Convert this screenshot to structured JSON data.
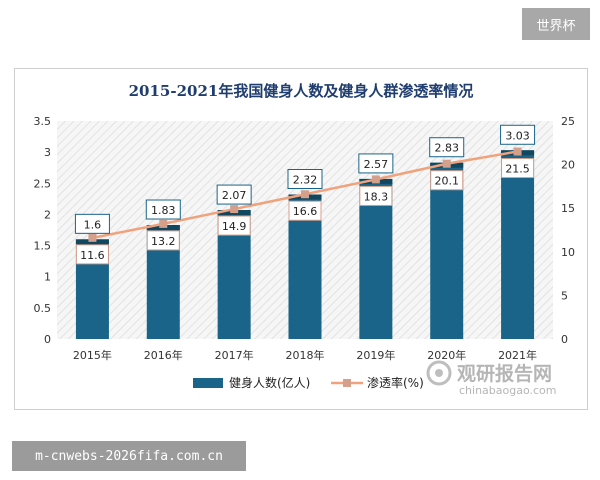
{
  "overlays": {
    "top_badge": "世界杯",
    "bottom_badge": "m-cnwebs-2026fifa.com.cn",
    "watermark_cn": "观研报告网",
    "watermark_en": "chinabaogao.com"
  },
  "colors": {
    "bar": "#1a6489",
    "bar_top": "#11485f",
    "line": "#f0a27c",
    "marker": "#d4a08c",
    "label_border": "#1a6489"
  },
  "chart_data": {
    "type": "bar",
    "title": "2015-2021年我国健身人数及健身人群渗透率情况",
    "categories": [
      "2015年",
      "2016年",
      "2017年",
      "2018年",
      "2019年",
      "2020年",
      "2021年"
    ],
    "y_left": {
      "ylim": [
        0,
        3.5
      ],
      "ticks": [
        "0",
        "0.5",
        "1",
        "1.5",
        "2",
        "2.5",
        "3",
        "3.5"
      ]
    },
    "y_right": {
      "ylim": [
        0,
        25
      ],
      "ticks": [
        "0",
        "5",
        "10",
        "15",
        "20",
        "25"
      ]
    },
    "series": [
      {
        "name": "健身人数(亿人)",
        "axis": "left",
        "kind": "bar",
        "values": [
          1.6,
          1.83,
          2.07,
          2.32,
          2.57,
          2.83,
          3.03
        ],
        "labels": [
          "1.6",
          "1.83",
          "2.07",
          "2.32",
          "2.57",
          "2.83",
          "3.03"
        ]
      },
      {
        "name": "渗透率(%)",
        "axis": "right",
        "kind": "line",
        "values": [
          11.6,
          13.2,
          14.9,
          16.6,
          18.3,
          20.1,
          21.5
        ],
        "labels": [
          "11.6",
          "13.2",
          "14.9",
          "16.6",
          "18.3",
          "20.1",
          "21.5"
        ]
      }
    ],
    "grid": false,
    "legend": "bottom"
  }
}
